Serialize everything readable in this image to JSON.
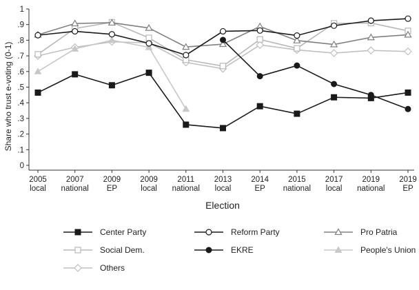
{
  "chart_data": {
    "type": "line",
    "title": "",
    "xlabel": "Election",
    "ylabel": "Share who trust e-voting (0-1)",
    "ylim": [
      0,
      1
    ],
    "yticks": [
      "0",
      ".1",
      ".2",
      ".3",
      ".4",
      ".5",
      ".6",
      ".7",
      ".8",
      ".9",
      "1"
    ],
    "grid": false,
    "legend_position": "bottom",
    "categories": [
      {
        "year": "2005",
        "type": "local"
      },
      {
        "year": "2007",
        "type": "national"
      },
      {
        "year": "2009",
        "type": "EP"
      },
      {
        "year": "2009",
        "type": "local"
      },
      {
        "year": "2011",
        "type": "national"
      },
      {
        "year": "2013",
        "type": "local"
      },
      {
        "year": "2014",
        "type": "EP"
      },
      {
        "year": "2015",
        "type": "national"
      },
      {
        "year": "2017",
        "type": "local"
      },
      {
        "year": "2019",
        "type": "national"
      },
      {
        "year": "2019",
        "type": "EP"
      }
    ],
    "series": [
      {
        "name": "Center Party",
        "color": "#1a1a1a",
        "marker": "square-filled",
        "values": [
          0.465,
          0.582,
          0.512,
          0.592,
          0.26,
          0.238,
          0.378,
          0.33,
          0.435,
          0.43,
          0.465
        ]
      },
      {
        "name": "Reform Party",
        "color": "#1a1a1a",
        "marker": "circle-hollow",
        "values": [
          0.832,
          0.857,
          0.838,
          0.78,
          0.705,
          0.857,
          0.862,
          0.83,
          0.893,
          0.925,
          0.938
        ]
      },
      {
        "name": "Pro Patria",
        "color": "#808080",
        "marker": "triangle-hollow",
        "values": [
          0.835,
          0.907,
          0.912,
          0.878,
          0.757,
          0.775,
          0.888,
          0.798,
          0.773,
          0.818,
          0.835
        ]
      },
      {
        "name": "Social Dem.",
        "color": "#b8b8b8",
        "marker": "square-hollow",
        "values": [
          0.71,
          0.875,
          0.915,
          0.815,
          0.675,
          0.635,
          0.805,
          0.748,
          0.908,
          0.91,
          0.86
        ]
      },
      {
        "name": "EKRE",
        "color": "#1a1a1a",
        "marker": "circle-filled",
        "values": [
          null,
          null,
          null,
          null,
          null,
          0.802,
          0.57,
          0.638,
          0.52,
          0.45,
          0.36
        ]
      },
      {
        "name": "People's Union",
        "color": "#c8c8c8",
        "marker": "triangle-filled",
        "values": [
          0.6,
          0.745,
          0.8,
          0.755,
          0.36,
          null,
          null,
          null,
          null,
          null,
          null
        ]
      },
      {
        "name": "Others",
        "color": "#c0c0c0",
        "marker": "diamond-hollow",
        "values": [
          0.7,
          0.755,
          0.79,
          0.783,
          0.658,
          0.618,
          0.77,
          0.738,
          0.718,
          0.735,
          0.728
        ]
      }
    ]
  }
}
